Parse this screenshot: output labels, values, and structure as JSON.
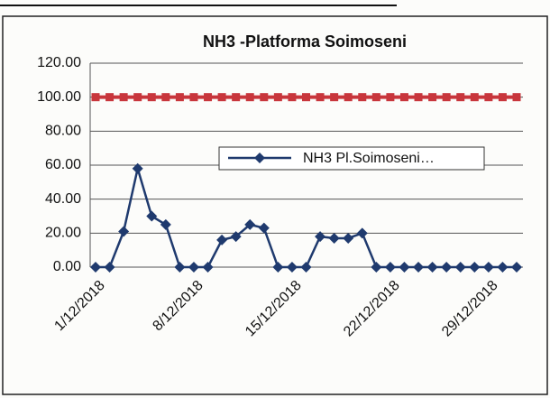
{
  "chart_data": {
    "type": "line",
    "title": "NH3 -Platforma Soimoseni",
    "categories": [
      "1/12/2018",
      null,
      null,
      null,
      null,
      null,
      null,
      "8/12/2018",
      null,
      null,
      null,
      null,
      null,
      null,
      "15/12/2018",
      null,
      null,
      null,
      null,
      null,
      null,
      "22/12/2018",
      null,
      null,
      null,
      null,
      null,
      null,
      "29/12/2018",
      null,
      null
    ],
    "series": [
      {
        "name": "NH3 Pl.Soimoseni…",
        "color": "#1f3a6e",
        "marker": "diamond",
        "values": [
          0,
          0,
          21,
          58,
          30,
          25,
          0,
          0,
          0,
          16,
          18,
          25,
          23,
          0,
          0,
          0,
          18,
          17,
          17,
          20,
          0,
          0,
          0,
          0,
          0,
          0,
          0,
          0,
          0,
          0,
          0
        ]
      },
      {
        "color": "#c8363c",
        "marker": "square",
        "values": [
          100,
          100,
          100,
          100,
          100,
          100,
          100,
          100,
          100,
          100,
          100,
          100,
          100,
          100,
          100,
          100,
          100,
          100,
          100,
          100,
          100,
          100,
          100,
          100,
          100,
          100,
          100,
          100,
          100,
          100,
          100
        ]
      }
    ],
    "ylim": [
      0,
      120
    ],
    "yticks": [
      {
        "value": 0,
        "label": "0.00"
      },
      {
        "value": 20,
        "label": "20.00"
      },
      {
        "value": 40,
        "label": "40.00"
      },
      {
        "value": 60,
        "label": "60.00"
      },
      {
        "value": 80,
        "label": "80.00"
      },
      {
        "value": 100,
        "label": "100.00"
      },
      {
        "value": 120,
        "label": "120.00"
      }
    ],
    "grid": true,
    "legend_position": "center-right"
  }
}
